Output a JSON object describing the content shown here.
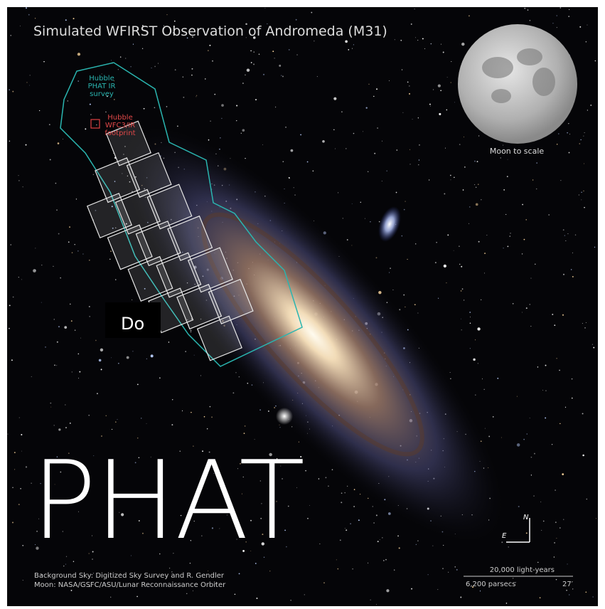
{
  "image": {
    "title": "Simulated WFIRST Observation of Andromeda (M31)",
    "phat_label": [
      "Hubble",
      "PHAT IR",
      "survey"
    ],
    "wfc3_label": [
      "Hubble",
      "WFC3/IR",
      "footprint"
    ],
    "moon_label": "Moon to scale",
    "compass": {
      "north": "N",
      "east": "E"
    },
    "credits": [
      "Background Sky: Digitized Sky Survey and R. Gendler",
      "Moon: NASA/GSFC/ASU/Lunar Reconnaissance Orbiter"
    ],
    "scale_bar": {
      "top": "20,000 light-years",
      "left": "6,200 parsecs",
      "right": "27′"
    }
  },
  "overlay": {
    "button": "Do",
    "caption": "PHAT"
  }
}
